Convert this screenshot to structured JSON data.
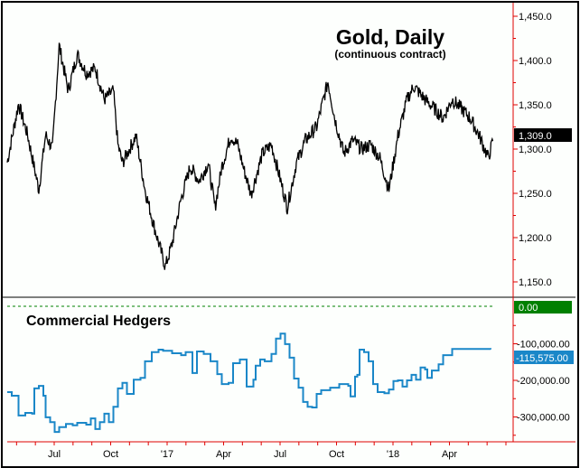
{
  "chart_data": [
    {
      "type": "line",
      "title": "Gold, Daily",
      "subtitle": "(continuous contract)",
      "ylim": [
        1140,
        1465
      ],
      "y_ticks": [
        "1,450.0",
        "1,400.0",
        "1,350.0",
        "1,300.0",
        "1,250.0",
        "1,200.0",
        "1,150.0"
      ],
      "y_tick_values": [
        1450,
        1400,
        1350,
        1300,
        1250,
        1200,
        1150
      ],
      "last_value_label": "1,309.0",
      "series": [
        {
          "name": "Gold",
          "color": "#000000",
          "x": [
            2016.28,
            2016.33,
            2016.37,
            2016.42,
            2016.45,
            2016.48,
            2016.51,
            2016.55,
            2016.59,
            2016.63,
            2016.67,
            2016.71,
            2016.75,
            2016.77,
            2016.79,
            2016.85,
            2016.89,
            2016.93,
            2016.98,
            2017.01,
            2017.05,
            2017.09,
            2017.13,
            2017.17,
            2017.2,
            2017.23,
            2017.27,
            2017.3,
            2017.33,
            2017.36,
            2017.41,
            2017.45,
            2017.48,
            2017.52,
            2017.56,
            2017.6,
            2017.65,
            2017.67,
            2017.7,
            2017.73,
            2017.77,
            2017.81,
            2017.85,
            2017.89,
            2017.93,
            2017.97,
            2018.01,
            2018.05,
            2018.08,
            2018.13,
            2018.17,
            2018.21,
            2018.25,
            2018.29,
            2018.33,
            2018.37,
            2018.41,
            2018.43
          ],
          "values": [
            1285,
            1351,
            1316,
            1254,
            1316,
            1300,
            1417,
            1366,
            1407,
            1386,
            1391,
            1356,
            1366,
            1305,
            1284,
            1315,
            1254,
            1213,
            1167,
            1193,
            1244,
            1280,
            1264,
            1284,
            1234,
            1280,
            1315,
            1305,
            1275,
            1249,
            1295,
            1305,
            1275,
            1234,
            1284,
            1310,
            1325,
            1346,
            1376,
            1335,
            1295,
            1310,
            1300,
            1305,
            1290,
            1254,
            1315,
            1356,
            1371,
            1356,
            1346,
            1335,
            1356,
            1346,
            1335,
            1315,
            1290,
            1309
          ]
        }
      ]
    },
    {
      "type": "line",
      "title": "Commercial Hedgers",
      "ylim": [
        -360000,
        20000
      ],
      "y_ticks": [
        "-100,000.00",
        "-200,000.00",
        "-300,000.00"
      ],
      "y_tick_values": [
        -100000,
        -200000,
        -300000
      ],
      "zero_label": "0.00",
      "last_value_label": "-115,575.00",
      "series": [
        {
          "name": "Commercial Hedgers",
          "color": "#1a87c8",
          "x": [
            2016.28,
            2016.3,
            2016.33,
            2016.36,
            2016.39,
            2016.4,
            2016.42,
            2016.44,
            2016.45,
            2016.47,
            2016.49,
            2016.51,
            2016.54,
            2016.57,
            2016.59,
            2016.63,
            2016.65,
            2016.67,
            2016.69,
            2016.71,
            2016.73,
            2016.75,
            2016.77,
            2016.79,
            2016.81,
            2016.84,
            2016.87,
            2016.89,
            2016.92,
            2016.95,
            2016.97,
            2017.01,
            2017.05,
            2017.07,
            2017.1,
            2017.12,
            2017.15,
            2017.18,
            2017.21,
            2017.23,
            2017.26,
            2017.28,
            2017.31,
            2017.34,
            2017.37,
            2017.38,
            2017.4,
            2017.42,
            2017.45,
            2017.47,
            2017.49,
            2017.51,
            2017.53,
            2017.55,
            2017.57,
            2017.59,
            2017.61,
            2017.63,
            2017.65,
            2017.67,
            2017.71,
            2017.75,
            2017.79,
            2017.8,
            2017.82,
            2017.83,
            2017.84,
            2017.86,
            2017.88,
            2017.9,
            2017.92,
            2017.95,
            2017.97,
            2017.99,
            2018.01,
            2018.03,
            2018.05,
            2018.07,
            2018.09,
            2018.11,
            2018.13,
            2018.14,
            2018.16,
            2018.19,
            2018.21,
            2018.23,
            2018.25,
            2018.27,
            2018.42
          ],
          "values": [
            -232000,
            -242000,
            -296000,
            -289000,
            -291000,
            -222000,
            -215000,
            -242000,
            -301000,
            -314000,
            -341000,
            -328000,
            -319000,
            -323000,
            -316000,
            -321000,
            -304000,
            -333000,
            -314000,
            -291000,
            -314000,
            -272000,
            -222000,
            -207000,
            -237000,
            -198000,
            -193000,
            -148000,
            -123000,
            -116000,
            -119000,
            -126000,
            -131000,
            -123000,
            -180000,
            -121000,
            -128000,
            -148000,
            -183000,
            -210000,
            -207000,
            -153000,
            -143000,
            -217000,
            -198000,
            -160000,
            -143000,
            -148000,
            -128000,
            -86000,
            -72000,
            -101000,
            -138000,
            -195000,
            -220000,
            -259000,
            -272000,
            -274000,
            -237000,
            -227000,
            -220000,
            -210000,
            -215000,
            -244000,
            -190000,
            -185000,
            -116000,
            -123000,
            -148000,
            -210000,
            -232000,
            -235000,
            -225000,
            -202000,
            -200000,
            -217000,
            -200000,
            -185000,
            -198000,
            -165000,
            -170000,
            -193000,
            -173000,
            -156000,
            -131000,
            -131000,
            -114000,
            -114000,
            -115575
          ]
        }
      ]
    }
  ],
  "x_axis": {
    "tick_labels": [
      "Jul",
      "Oct",
      "'17",
      "Apr",
      "Jul",
      "Oct",
      "'18",
      "Apr"
    ],
    "tick_values": [
      2016.5,
      2016.75,
      2017.0,
      2017.25,
      2017.5,
      2017.75,
      2018.0,
      2018.25
    ]
  },
  "colors": {
    "axis": "#e00000",
    "zero_box": "#008000",
    "hedgers_box": "#1a87c8",
    "gold_box": "#000000"
  }
}
